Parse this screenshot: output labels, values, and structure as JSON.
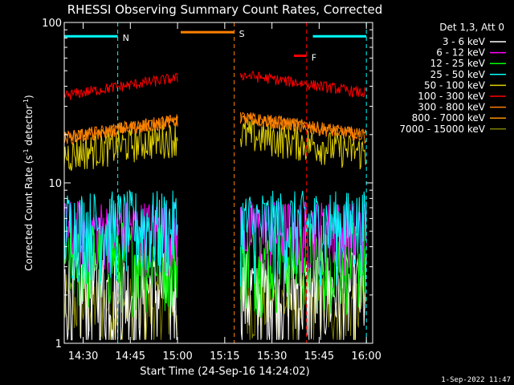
{
  "chart_data": {
    "type": "line",
    "title": "RHESSI Observing Summary Count Rates, Corrected",
    "xlabel": "Start Time (24-Sep-16 14:24:02)",
    "ylabel": "Corrected Count Rate (s",
    "ylabel_sup1": "-1",
    "ylabel_mid": " detector",
    "ylabel_sup2": "-1",
    "ylabel_end": ")",
    "y_scale": "log",
    "ylim": [
      1,
      100
    ],
    "xlim_minutes": [
      0,
      98
    ],
    "x_ticks": [
      {
        "t": 6,
        "label": "14:30"
      },
      {
        "t": 21,
        "label": "14:45"
      },
      {
        "t": 36,
        "label": "15:00"
      },
      {
        "t": 51,
        "label": "15:15"
      },
      {
        "t": 66,
        "label": "15:30"
      },
      {
        "t": 81,
        "label": "15:45"
      },
      {
        "t": 96,
        "label": "16:00"
      }
    ],
    "y_ticks": [
      {
        "v": 1,
        "label": "1"
      },
      {
        "v": 10,
        "label": "10"
      },
      {
        "v": 100,
        "label": "100"
      }
    ],
    "legend_title": "Det 1,3, Att 0",
    "series": [
      {
        "name": "3 - 6 keV",
        "color": "#ffffff",
        "level": 2.2,
        "noise": 0.7
      },
      {
        "name": "6 - 12 keV",
        "color": "#ff00ff",
        "level": 5.2,
        "noise": 0.5
      },
      {
        "name": "12 - 25 keV",
        "color": "#00ff00",
        "level": 3.6,
        "noise": 0.6
      },
      {
        "name": "25 - 50 keV",
        "color": "#00ffff",
        "level": 5.6,
        "noise": 0.6
      },
      {
        "name": "50 - 100 keV",
        "color": "#e0d000",
        "level": 15.0,
        "noise": 0.25
      },
      {
        "name": "100 - 300 keV",
        "color": "#ff0000",
        "level": 35.0,
        "noise": 0.08
      },
      {
        "name": "300 - 800 keV",
        "color": "#ff8000",
        "level": 19.0,
        "noise": 0.1
      },
      {
        "name": "800 - 7000 keV",
        "color": "#ff8c00",
        "level": 19.0,
        "noise": 0.1
      },
      {
        "name": "7000 - 15000 keV",
        "color": "#808000",
        "level": 1.8,
        "noise": 0.5
      }
    ],
    "segments": [
      {
        "start": 0,
        "end": 36
      },
      {
        "start": 56,
        "end": 96
      }
    ],
    "annotations": [
      {
        "label": "N",
        "color": "#00ffff",
        "bar_start": 0,
        "bar_end": 17,
        "bar_value": 82,
        "line_value": null
      },
      {
        "label": "S",
        "color": "#ff8000",
        "bar_start": 37,
        "bar_end": 54,
        "bar_value": 87,
        "line_value": null
      },
      {
        "label": "F",
        "color": "#ff0000",
        "bar_start": 73,
        "bar_end": 77,
        "bar_value": 62,
        "line_value": null
      },
      {
        "label": "",
        "color": "#00ffff",
        "bar_start": 79,
        "bar_end": 96,
        "bar_value": 82,
        "line_value": null
      }
    ],
    "footer": "1-Sep-2022 11:47"
  },
  "colors": {
    "background": "#000000",
    "axes": "#ffffff"
  }
}
